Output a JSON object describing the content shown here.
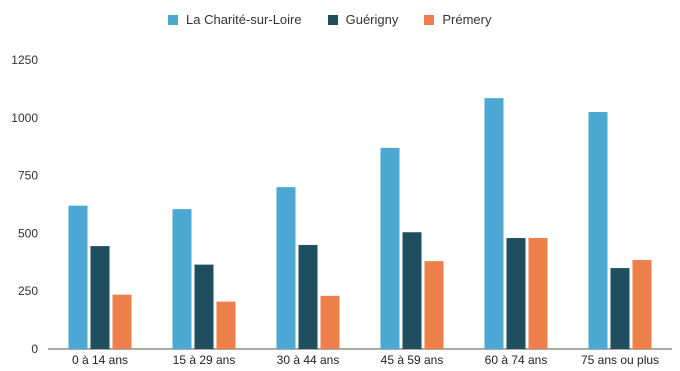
{
  "chart_data": {
    "type": "bar",
    "categories": [
      "0 à 14 ans",
      "15 à 29 ans",
      "30 à 44 ans",
      "45 à 59 ans",
      "60 à 74 ans",
      "75 ans ou plus"
    ],
    "series": [
      {
        "name": "La Charité-sur-Loire",
        "color": "#4aa8d2",
        "values": [
          620,
          605,
          700,
          870,
          1085,
          1025
        ]
      },
      {
        "name": "Guérigny",
        "color": "#1f4e5f",
        "values": [
          445,
          365,
          450,
          505,
          480,
          350
        ]
      },
      {
        "name": "Prémery",
        "color": "#ef7f4a",
        "values": [
          235,
          205,
          230,
          380,
          480,
          385
        ]
      }
    ],
    "ylim": [
      0,
      1250
    ],
    "yticks": [
      0,
      250,
      500,
      750,
      1000,
      1250
    ],
    "legend_position": "top",
    "grid": false
  }
}
